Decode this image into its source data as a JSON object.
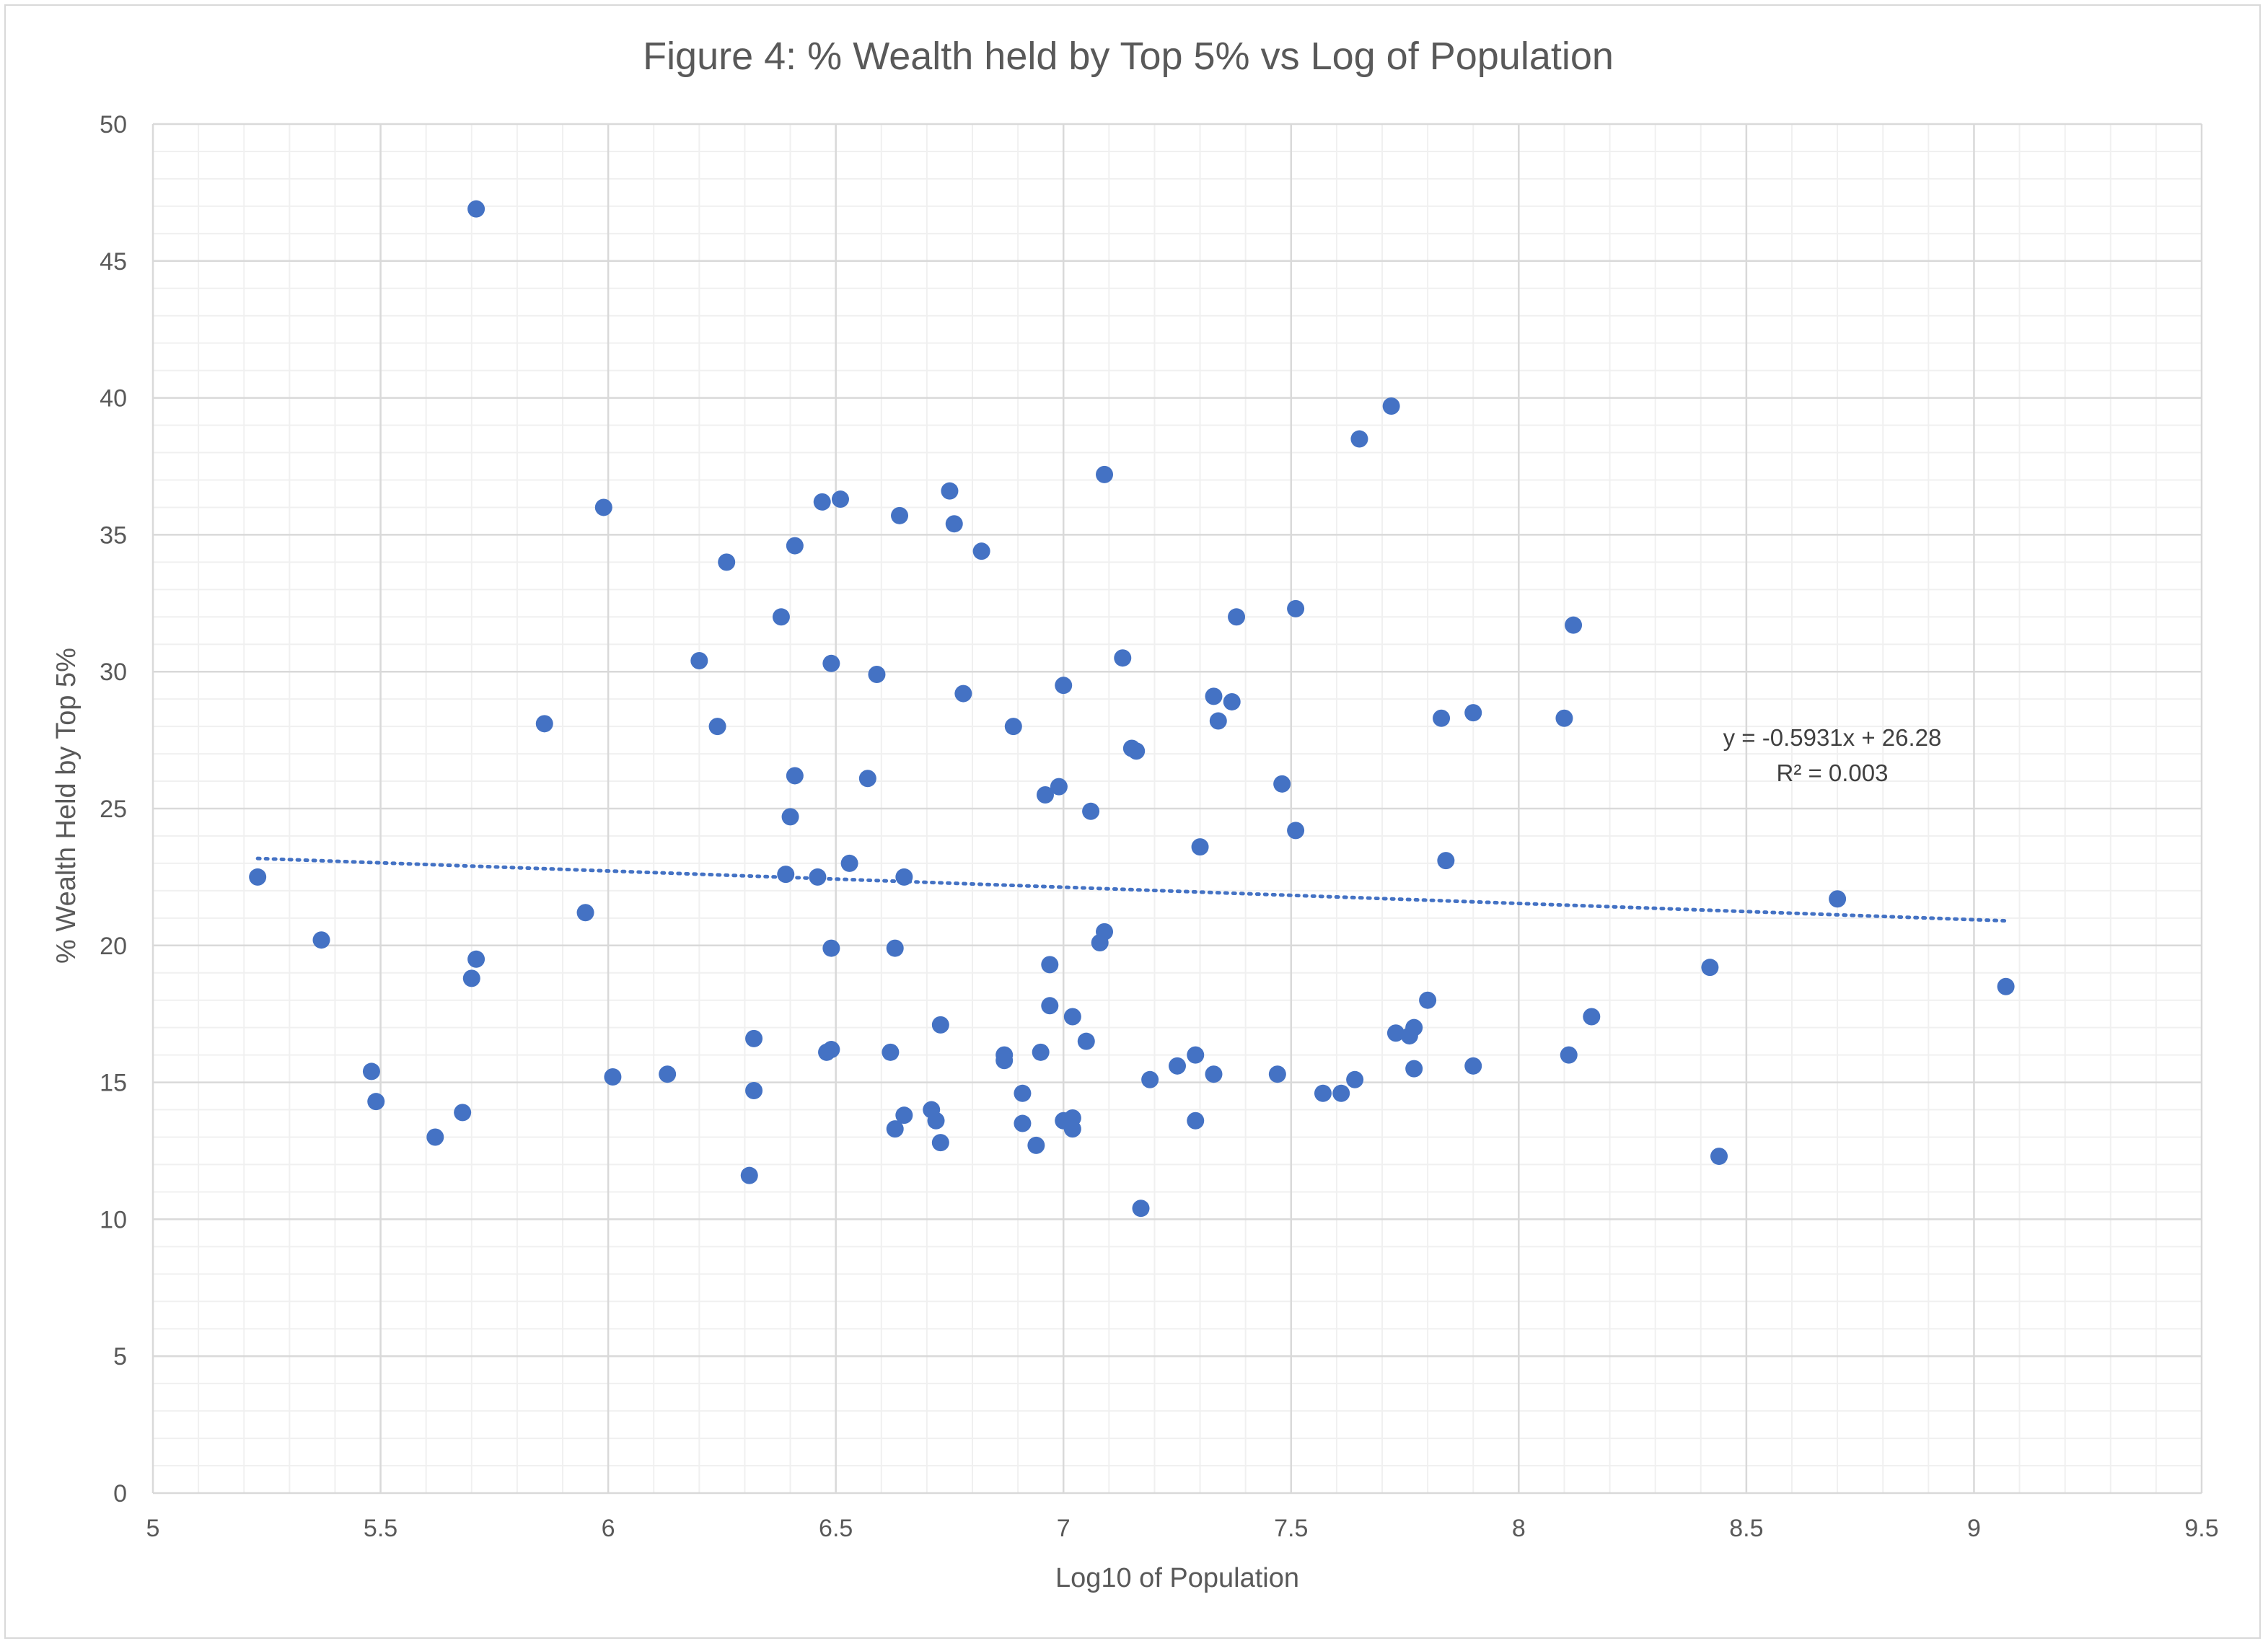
{
  "chart_data": {
    "type": "scatter",
    "title": "Figure 4: % Wealth held by Top 5% vs Log of Population",
    "xlabel": "Log10 of Population",
    "ylabel": "% Wealth Held by Top 5%",
    "xlim": [
      5,
      9.5
    ],
    "ylim": [
      0,
      50
    ],
    "x_ticks": [
      "5",
      "5.5",
      "6",
      "6.5",
      "7",
      "7.5",
      "8",
      "8.5",
      "9",
      "9.5"
    ],
    "y_ticks": [
      "0",
      "5",
      "10",
      "15",
      "20",
      "25",
      "30",
      "35",
      "40",
      "45",
      "50"
    ],
    "grid": true,
    "legend": "none",
    "point_color": "#4472c4",
    "trendline": {
      "slope": -0.5931,
      "intercept": 26.28,
      "x_range": [
        5.23,
        9.07
      ],
      "style": "dotted",
      "color": "#4472c4",
      "equation": "y = -0.5931x + 26.28",
      "r_squared": "R² = 0.003"
    },
    "points": [
      [
        5.23,
        22.5
      ],
      [
        5.37,
        20.2
      ],
      [
        5.48,
        15.4
      ],
      [
        5.49,
        14.3
      ],
      [
        5.62,
        13.0
      ],
      [
        5.68,
        13.9
      ],
      [
        5.7,
        18.8
      ],
      [
        5.71,
        19.5
      ],
      [
        5.71,
        46.9
      ],
      [
        5.86,
        28.1
      ],
      [
        5.95,
        21.2
      ],
      [
        5.99,
        36.0
      ],
      [
        6.01,
        15.2
      ],
      [
        6.13,
        15.3
      ],
      [
        6.2,
        30.4
      ],
      [
        6.24,
        28.0
      ],
      [
        6.26,
        34.0
      ],
      [
        6.31,
        11.6
      ],
      [
        6.32,
        14.7
      ],
      [
        6.32,
        16.6
      ],
      [
        6.38,
        32.0
      ],
      [
        6.39,
        22.6
      ],
      [
        6.4,
        24.7
      ],
      [
        6.41,
        26.2
      ],
      [
        6.41,
        34.6
      ],
      [
        6.46,
        22.5
      ],
      [
        6.47,
        36.2
      ],
      [
        6.48,
        16.1
      ],
      [
        6.49,
        16.2
      ],
      [
        6.49,
        19.9
      ],
      [
        6.49,
        30.3
      ],
      [
        6.51,
        36.3
      ],
      [
        6.53,
        23.0
      ],
      [
        6.57,
        26.1
      ],
      [
        6.59,
        29.9
      ],
      [
        6.62,
        16.1
      ],
      [
        6.63,
        13.3
      ],
      [
        6.63,
        19.9
      ],
      [
        6.64,
        35.7
      ],
      [
        6.65,
        13.8
      ],
      [
        6.65,
        22.5
      ],
      [
        6.71,
        14.0
      ],
      [
        6.72,
        13.6
      ],
      [
        6.73,
        12.8
      ],
      [
        6.73,
        17.1
      ],
      [
        6.75,
        36.6
      ],
      [
        6.76,
        35.4
      ],
      [
        6.78,
        29.2
      ],
      [
        6.82,
        34.4
      ],
      [
        6.87,
        16.0
      ],
      [
        6.87,
        15.8
      ],
      [
        6.89,
        28.0
      ],
      [
        6.91,
        14.6
      ],
      [
        6.91,
        13.5
      ],
      [
        6.94,
        12.7
      ],
      [
        6.95,
        16.1
      ],
      [
        6.96,
        25.5
      ],
      [
        6.97,
        17.8
      ],
      [
        6.97,
        19.3
      ],
      [
        6.99,
        25.8
      ],
      [
        7.0,
        13.6
      ],
      [
        7.0,
        29.5
      ],
      [
        7.02,
        13.3
      ],
      [
        7.02,
        13.7
      ],
      [
        7.02,
        17.4
      ],
      [
        7.05,
        16.5
      ],
      [
        7.06,
        24.9
      ],
      [
        7.08,
        20.1
      ],
      [
        7.09,
        37.2
      ],
      [
        7.09,
        20.5
      ],
      [
        7.13,
        30.5
      ],
      [
        7.15,
        27.2
      ],
      [
        7.16,
        27.1
      ],
      [
        7.17,
        10.4
      ],
      [
        7.19,
        15.1
      ],
      [
        7.25,
        15.6
      ],
      [
        7.29,
        13.6
      ],
      [
        7.29,
        16.0
      ],
      [
        7.3,
        23.6
      ],
      [
        7.33,
        29.1
      ],
      [
        7.33,
        15.3
      ],
      [
        7.34,
        28.2
      ],
      [
        7.37,
        28.9
      ],
      [
        7.38,
        32.0
      ],
      [
        7.47,
        15.3
      ],
      [
        7.48,
        25.9
      ],
      [
        7.51,
        24.2
      ],
      [
        7.51,
        32.3
      ],
      [
        7.57,
        14.6
      ],
      [
        7.61,
        14.6
      ],
      [
        7.64,
        15.1
      ],
      [
        7.65,
        38.5
      ],
      [
        7.72,
        39.7
      ],
      [
        7.73,
        16.8
      ],
      [
        7.76,
        16.7
      ],
      [
        7.77,
        17.0
      ],
      [
        7.77,
        15.5
      ],
      [
        7.8,
        18.0
      ],
      [
        7.83,
        28.3
      ],
      [
        7.84,
        23.1
      ],
      [
        7.9,
        28.5
      ],
      [
        7.9,
        15.6
      ],
      [
        8.1,
        28.3
      ],
      [
        8.11,
        16.0
      ],
      [
        8.12,
        31.7
      ],
      [
        8.16,
        17.4
      ],
      [
        8.42,
        19.2
      ],
      [
        8.44,
        12.3
      ],
      [
        8.7,
        21.7
      ],
      [
        9.07,
        18.5
      ]
    ]
  }
}
